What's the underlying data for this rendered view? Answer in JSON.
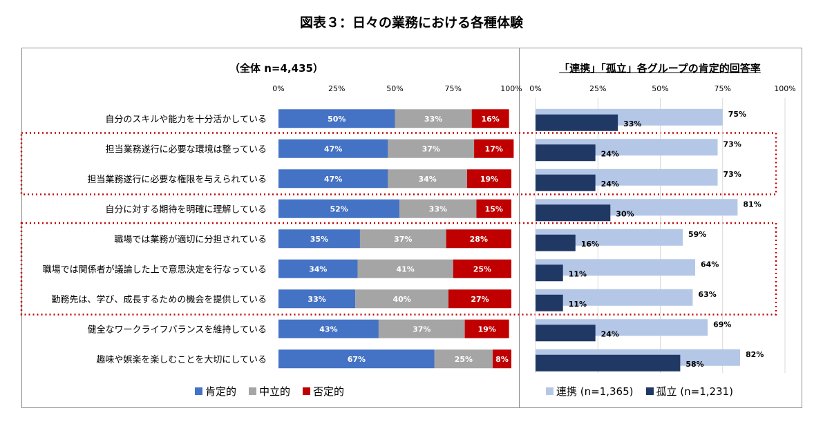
{
  "title": "図表３：日々の業務における各種体験",
  "left_panel": {
    "title": "（全体 n=4,435）"
  },
  "right_panel": {
    "title": "「連携」「孤立」各グループの肯定的回答率"
  },
  "colors": {
    "positive": "#4472c4",
    "neutral": "#a5a5a5",
    "negative": "#c00000",
    "renkei": "#b4c7e7",
    "koritsu": "#203864",
    "highlight_border": "#c00000"
  },
  "chart_data": [
    {
      "type": "bar",
      "orientation": "horizontal",
      "stacked": true,
      "title": "（全体 n=4,435）",
      "categories": [
        "自分のスキルや能力を十分活かしている",
        "担当業務遂行に必要な環境は整っている",
        "担当業務遂行に必要な権限を与えられている",
        "自分に対する期待を明確に理解している",
        "職場では業務が適切に分担されている",
        "職場では関係者が議論した上で意思決定を行なっている",
        "勤務先は、学び、成長するための機会を提供している",
        "健全なワークライフバランスを維持している",
        "趣味や娯楽を楽しむことを大切にしている"
      ],
      "series": [
        {
          "name": "肯定的",
          "values": [
            50,
            47,
            47,
            52,
            35,
            34,
            33,
            43,
            67
          ]
        },
        {
          "name": "中立的",
          "values": [
            33,
            37,
            34,
            33,
            37,
            41,
            40,
            37,
            25
          ]
        },
        {
          "name": "否定的",
          "values": [
            16,
            17,
            19,
            15,
            28,
            25,
            27,
            19,
            8
          ]
        }
      ],
      "xlim": [
        0,
        100
      ],
      "ticks": [
        "0%",
        "25%",
        "50%",
        "75%",
        "100%"
      ],
      "legend": "bottom",
      "highlighted_groups": [
        [
          1,
          2
        ],
        [
          4,
          5,
          6
        ]
      ]
    },
    {
      "type": "bar",
      "orientation": "horizontal",
      "stacked": false,
      "overlapped": true,
      "title": "「連携」「孤立」各グループの肯定的回答率",
      "series": [
        {
          "name": "連携 (n=1,365)",
          "values": [
            75,
            73,
            73,
            81,
            59,
            64,
            63,
            69,
            82
          ]
        },
        {
          "name": "孤立 (n=1,231)",
          "values": [
            33,
            24,
            24,
            30,
            16,
            11,
            11,
            24,
            58
          ]
        }
      ],
      "xlim": [
        0,
        100
      ],
      "ticks": [
        "0%",
        "25%",
        "50%",
        "75%",
        "100%"
      ],
      "legend": "bottom"
    }
  ]
}
